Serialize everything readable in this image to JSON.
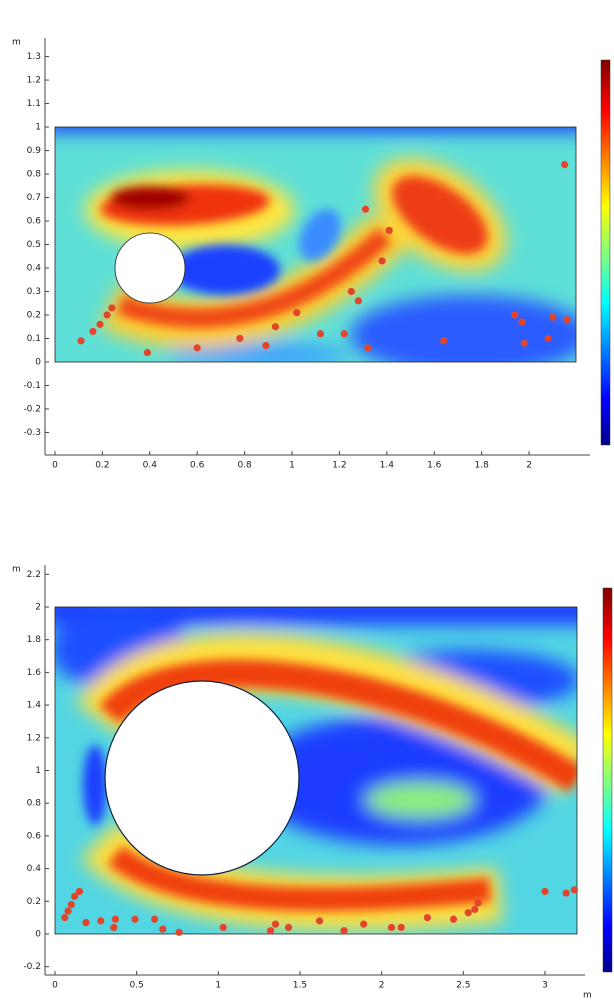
{
  "chart_data": [
    {
      "type": "scatter",
      "y_label": "m",
      "xlim": [
        -0.042,
        2.257
      ],
      "ylim": [
        -0.396,
        1.379
      ],
      "xticks": [
        0,
        0.2,
        0.4,
        0.6,
        0.8,
        1,
        1.2,
        1.4,
        1.6,
        1.8,
        2
      ],
      "yticks": [
        -0.3,
        -0.2,
        -0.1,
        0,
        0.1,
        0.2,
        0.3,
        0.4,
        0.5,
        0.6,
        0.7,
        0.8,
        0.9,
        1,
        1.1,
        1.2,
        1.3
      ],
      "series": [
        {
          "color": "#e2452b",
          "x": [
            0.11,
            0.16,
            0.19,
            0.22,
            0.24,
            0.39,
            0.6,
            0.78,
            0.89,
            0.93,
            1.02,
            1.12,
            1.22,
            1.25,
            1.28,
            1.31,
            1.32,
            1.38,
            1.41,
            1.64,
            1.94,
            1.97,
            1.98,
            2.08,
            2.1,
            2.16,
            2.15
          ],
          "values": [
            0.09,
            0.13,
            0.16,
            0.2,
            0.23,
            0.04,
            0.06,
            0.1,
            0.07,
            0.15,
            0.21,
            0.12,
            0.12,
            0.3,
            0.26,
            0.65,
            0.06,
            0.43,
            0.56,
            0.09,
            0.2,
            0.17,
            0.08,
            0.1,
            0.19,
            0.18,
            0.84
          ]
        }
      ]
    },
    {
      "type": "scatter",
      "y_label": "m",
      "x_label": "m",
      "xlim": [
        -0.061,
        3.245
      ],
      "ylim": [
        -0.251,
        2.257
      ],
      "xticks": [
        0,
        0.5,
        1,
        1.5,
        2,
        2.5,
        3
      ],
      "yticks": [
        -0.2,
        0,
        0.2,
        0.4,
        0.6,
        0.8,
        1,
        1.2,
        1.4,
        1.6,
        1.8,
        2,
        2.2
      ],
      "series": [
        {
          "color": "#e2452b",
          "x": [
            0.06,
            0.08,
            0.1,
            0.12,
            0.15,
            0.19,
            0.28,
            0.36,
            0.37,
            0.49,
            0.61,
            0.66,
            0.76,
            1.03,
            1.32,
            1.35,
            1.43,
            1.62,
            1.77,
            1.89,
            2.06,
            2.12,
            2.28,
            2.44,
            2.53,
            2.57,
            2.59,
            3.0,
            3.13,
            3.18
          ],
          "values": [
            0.1,
            0.14,
            0.18,
            0.23,
            0.26,
            0.07,
            0.08,
            0.04,
            0.09,
            0.09,
            0.09,
            0.03,
            0.01,
            0.04,
            0.02,
            0.06,
            0.04,
            0.08,
            0.02,
            0.06,
            0.04,
            0.04,
            0.1,
            0.09,
            0.13,
            0.15,
            0.19,
            0.26,
            0.25,
            0.27
          ]
        }
      ]
    }
  ]
}
